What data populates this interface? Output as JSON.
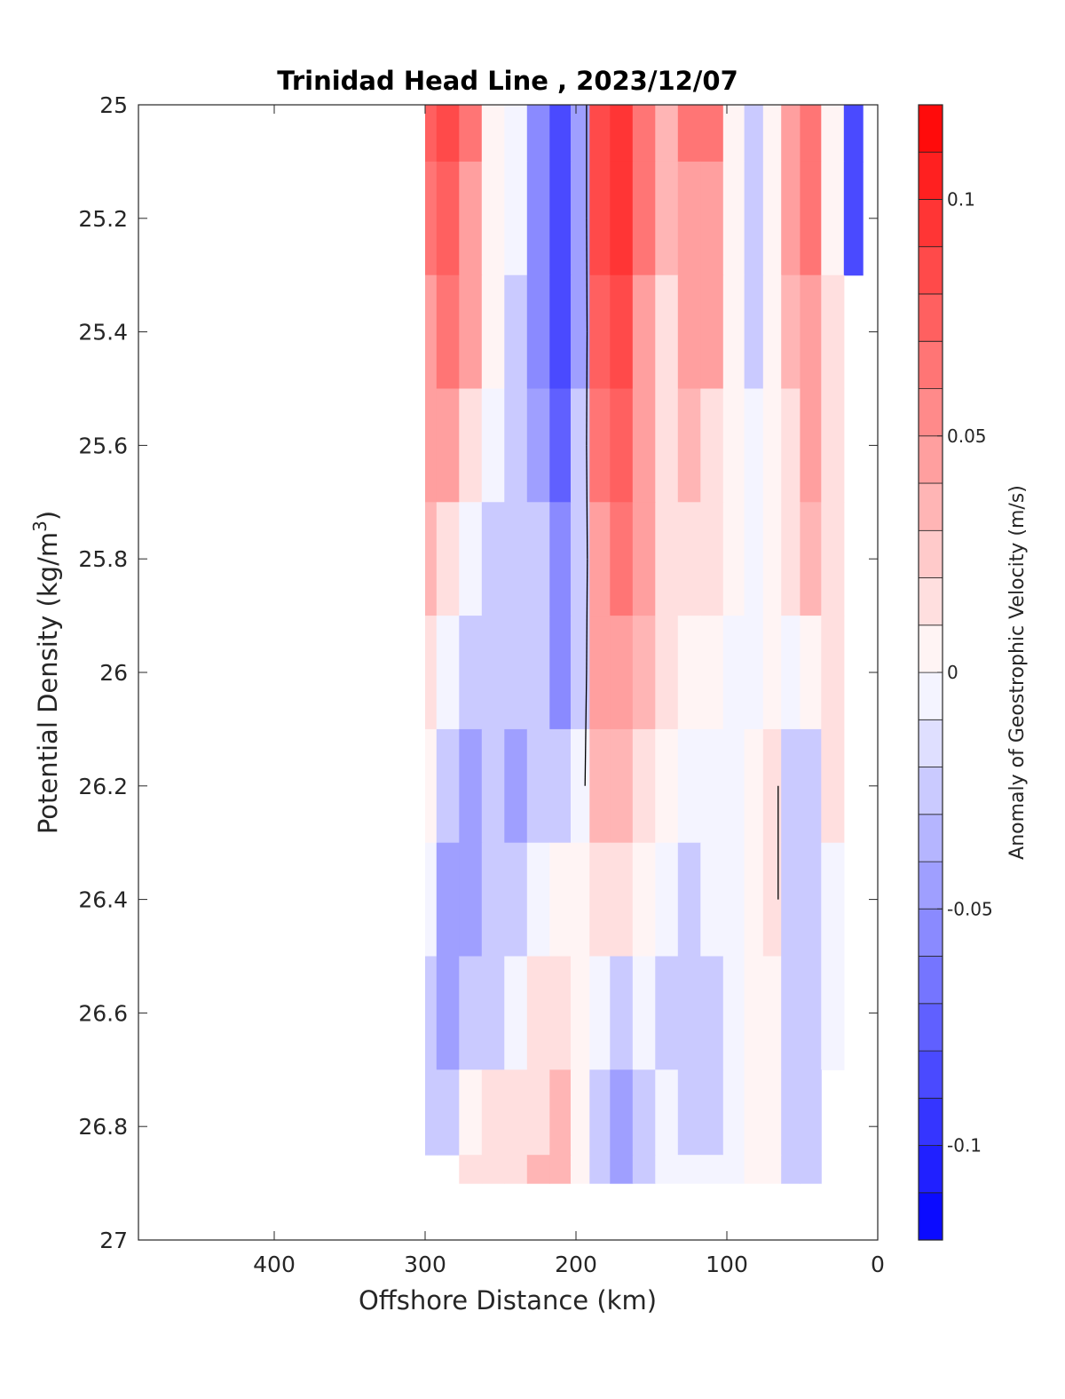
{
  "chart_data": {
    "type": "heatmap",
    "title": "Trinidad Head Line , 2023/12/07",
    "xlabel": "Offshore Distance (km)",
    "ylabel_main": "Potential Density (kg/m",
    "ylabel_sup": "3",
    "ylabel_close": ")",
    "colorbar_label": "Anomaly of Geostrophic Velocity (m/s)",
    "xlim": [
      490,
      0
    ],
    "x_reversed": true,
    "ylim": [
      25,
      27
    ],
    "y_reversed": true,
    "x_ticks": [
      400,
      300,
      200,
      100,
      0
    ],
    "x_tick_labels": [
      "400",
      "300",
      "200",
      "100",
      "0"
    ],
    "y_ticks": [
      25,
      25.2,
      25.4,
      25.6,
      25.8,
      26,
      26.2,
      26.4,
      26.6,
      26.8,
      27
    ],
    "y_tick_labels": [
      "25",
      "25.2",
      "25.4",
      "25.6",
      "25.8",
      "26",
      "26.2",
      "26.4",
      "26.6",
      "26.8",
      "27"
    ],
    "clim": [
      -0.12,
      0.12
    ],
    "colorbar_ticks": [
      0.1,
      0.05,
      0,
      -0.05,
      -0.1
    ],
    "colorbar_tick_labels": [
      "0.1",
      "0.05",
      "0",
      "-0.05",
      "-0.1"
    ],
    "colorbar_levels": 24,
    "colors": {
      "positive": "#ff0000",
      "negative": "#0000ff",
      "zero": "#ffffff"
    },
    "x": [
      300,
      285,
      270,
      255,
      240,
      225,
      210,
      197,
      185,
      170,
      155,
      140,
      125,
      110,
      95,
      82,
      70,
      58,
      45,
      30,
      15
    ],
    "y": [
      25.0,
      25.2,
      25.4,
      25.6,
      25.8,
      26.0,
      26.2,
      26.4,
      26.6,
      26.8,
      26.9
    ],
    "values": [
      [
        0.07,
        0.08,
        0.06,
        0.0,
        -0.01,
        -0.06,
        -0.09,
        -0.04,
        0.08,
        0.09,
        0.06,
        0.03,
        0.06,
        0.06,
        0.0,
        -0.02,
        0.0,
        0.04,
        0.06,
        0.0,
        -0.09
      ],
      [
        0.06,
        0.07,
        0.05,
        0.0,
        -0.01,
        -0.05,
        -0.09,
        -0.04,
        0.08,
        0.09,
        0.06,
        0.03,
        0.05,
        0.05,
        0.0,
        -0.02,
        0.0,
        0.04,
        0.06,
        0.0,
        -0.08
      ],
      [
        0.05,
        0.06,
        0.04,
        0.0,
        -0.02,
        -0.05,
        -0.08,
        -0.04,
        0.07,
        0.08,
        0.05,
        0.02,
        0.04,
        0.04,
        0.0,
        -0.02,
        0.0,
        0.03,
        0.05,
        0.02,
        null
      ],
      [
        0.04,
        0.04,
        0.02,
        -0.01,
        -0.02,
        -0.04,
        -0.07,
        -0.03,
        0.06,
        0.07,
        0.04,
        0.02,
        0.03,
        0.02,
        0.0,
        -0.01,
        0.0,
        0.02,
        0.04,
        0.02,
        null
      ],
      [
        0.03,
        0.02,
        -0.01,
        -0.02,
        -0.02,
        -0.03,
        -0.06,
        -0.03,
        0.05,
        0.06,
        0.04,
        0.02,
        0.02,
        0.01,
        0.0,
        -0.01,
        0.0,
        0.01,
        0.03,
        0.02,
        null
      ],
      [
        0.02,
        -0.01,
        -0.02,
        -0.03,
        -0.03,
        -0.02,
        -0.05,
        -0.02,
        0.04,
        0.05,
        0.03,
        0.01,
        0.0,
        0.0,
        -0.01,
        -0.01,
        0.0,
        -0.01,
        0.0,
        0.02,
        null
      ],
      [
        0.0,
        -0.03,
        -0.04,
        -0.03,
        -0.04,
        -0.02,
        -0.03,
        -0.01,
        0.03,
        0.03,
        0.02,
        0.0,
        -0.01,
        -0.01,
        -0.01,
        0.0,
        0.01,
        -0.02,
        -0.02,
        0.01,
        null
      ],
      [
        -0.01,
        -0.04,
        -0.04,
        -0.03,
        -0.03,
        -0.01,
        0.0,
        0.0,
        0.01,
        0.01,
        0.0,
        -0.01,
        -0.02,
        -0.01,
        -0.01,
        0.0,
        0.01,
        -0.02,
        -0.03,
        -0.01,
        null
      ],
      [
        -0.02,
        -0.04,
        -0.03,
        -0.02,
        -0.01,
        0.01,
        0.02,
        0.0,
        -0.01,
        -0.02,
        -0.01,
        -0.02,
        -0.02,
        -0.02,
        -0.01,
        0.0,
        0.0,
        -0.02,
        -0.03,
        -0.01,
        null
      ],
      [
        -0.03,
        -0.02,
        0.0,
        0.01,
        0.01,
        0.02,
        0.03,
        0.0,
        -0.03,
        -0.04,
        -0.02,
        -0.01,
        -0.02,
        -0.02,
        -0.01,
        0.0,
        0.0,
        -0.02,
        -0.03,
        null,
        null
      ],
      [
        null,
        null,
        0.01,
        0.02,
        0.02,
        0.03,
        0.03,
        0.0,
        -0.03,
        -0.04,
        -0.02,
        -0.01,
        -0.01,
        -0.01,
        -0.01,
        0.0,
        0.0,
        -0.02,
        -0.03,
        null,
        null
      ]
    ]
  }
}
